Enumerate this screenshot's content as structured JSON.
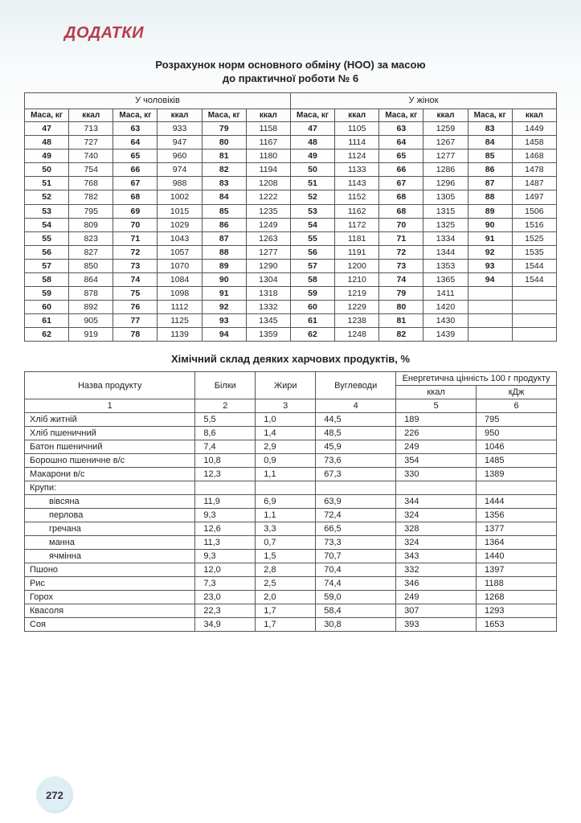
{
  "header": {
    "title": "ДОДАТКИ"
  },
  "noo": {
    "title": "Розрахунок норм основного обміну (НОО) за масою",
    "subtitle": "до практичної роботи № 6",
    "group_men": "У чоловіків",
    "group_women": "У жінок",
    "col_mass": "Маса, кг",
    "col_kcal": "ккал",
    "rows": [
      {
        "m": [
          [
            "47",
            713
          ],
          [
            "63",
            933
          ],
          [
            "79",
            1158
          ]
        ],
        "w": [
          [
            "47",
            1105
          ],
          [
            "63",
            1259
          ],
          [
            "83",
            1449
          ]
        ]
      },
      {
        "m": [
          [
            "48",
            727
          ],
          [
            "64",
            947
          ],
          [
            "80",
            1167
          ]
        ],
        "w": [
          [
            "48",
            1114
          ],
          [
            "64",
            1267
          ],
          [
            "84",
            1458
          ]
        ]
      },
      {
        "m": [
          [
            "49",
            740
          ],
          [
            "65",
            960
          ],
          [
            "81",
            1180
          ]
        ],
        "w": [
          [
            "49",
            1124
          ],
          [
            "65",
            1277
          ],
          [
            "85",
            1468
          ]
        ]
      },
      {
        "m": [
          [
            "50",
            754
          ],
          [
            "66",
            974
          ],
          [
            "82",
            1194
          ]
        ],
        "w": [
          [
            "50",
            1133
          ],
          [
            "66",
            1286
          ],
          [
            "86",
            1478
          ]
        ]
      },
      {
        "m": [
          [
            "51",
            768
          ],
          [
            "67",
            988
          ],
          [
            "83",
            1208
          ]
        ],
        "w": [
          [
            "51",
            1143
          ],
          [
            "67",
            1296
          ],
          [
            "87",
            1487
          ]
        ]
      },
      {
        "m": [
          [
            "52",
            782
          ],
          [
            "68",
            1002
          ],
          [
            "84",
            1222
          ]
        ],
        "w": [
          [
            "52",
            1152
          ],
          [
            "68",
            1305
          ],
          [
            "88",
            1497
          ]
        ]
      },
      {
        "m": [
          [
            "53",
            795
          ],
          [
            "69",
            1015
          ],
          [
            "85",
            1235
          ]
        ],
        "w": [
          [
            "53",
            1162
          ],
          [
            "68",
            1315
          ],
          [
            "89",
            1506
          ]
        ]
      },
      {
        "m": [
          [
            "54",
            809
          ],
          [
            "70",
            1029
          ],
          [
            "86",
            1249
          ]
        ],
        "w": [
          [
            "54",
            1172
          ],
          [
            "70",
            1325
          ],
          [
            "90",
            1516
          ]
        ]
      },
      {
        "m": [
          [
            "55",
            823
          ],
          [
            "71",
            1043
          ],
          [
            "87",
            1263
          ]
        ],
        "w": [
          [
            "55",
            1181
          ],
          [
            "71",
            1334
          ],
          [
            "91",
            1525
          ]
        ]
      },
      {
        "m": [
          [
            "56",
            827
          ],
          [
            "72",
            1057
          ],
          [
            "88",
            1277
          ]
        ],
        "w": [
          [
            "56",
            1191
          ],
          [
            "72",
            1344
          ],
          [
            "92",
            1535
          ]
        ]
      },
      {
        "m": [
          [
            "57",
            850
          ],
          [
            "73",
            1070
          ],
          [
            "89",
            1290
          ]
        ],
        "w": [
          [
            "57",
            1200
          ],
          [
            "73",
            1353
          ],
          [
            "93",
            1544
          ]
        ]
      },
      {
        "m": [
          [
            "58",
            864
          ],
          [
            "74",
            1084
          ],
          [
            "90",
            1304
          ]
        ],
        "w": [
          [
            "58",
            1210
          ],
          [
            "74",
            1365
          ],
          [
            "94",
            1544
          ]
        ]
      },
      {
        "m": [
          [
            "59",
            878
          ],
          [
            "75",
            1098
          ],
          [
            "91",
            1318
          ]
        ],
        "w": [
          [
            "59",
            1219
          ],
          [
            "79",
            1411
          ],
          [
            "",
            ""
          ]
        ]
      },
      {
        "m": [
          [
            "60",
            892
          ],
          [
            "76",
            1112
          ],
          [
            "92",
            1332
          ]
        ],
        "w": [
          [
            "60",
            1229
          ],
          [
            "80",
            1420
          ],
          [
            "",
            ""
          ]
        ]
      },
      {
        "m": [
          [
            "61",
            905
          ],
          [
            "77",
            1125
          ],
          [
            "93",
            1345
          ]
        ],
        "w": [
          [
            "61",
            1238
          ],
          [
            "81",
            1430
          ],
          [
            "",
            ""
          ]
        ]
      },
      {
        "m": [
          [
            "62",
            919
          ],
          [
            "78",
            1139
          ],
          [
            "94",
            1359
          ]
        ],
        "w": [
          [
            "62",
            1248
          ],
          [
            "82",
            1439
          ],
          [
            "",
            ""
          ]
        ]
      }
    ]
  },
  "foods": {
    "title": "Хімічний склад деяких харчових продуктів, %",
    "headers": {
      "name": "Назва продукту",
      "protein": "Білки",
      "fat": "Жири",
      "carbs": "Вуглеводи",
      "energy": "Енергетична цінність 100 г продукту",
      "kcal": "ккал",
      "kj": "кДж"
    },
    "colnums": [
      "1",
      "2",
      "3",
      "4",
      "5",
      "6"
    ],
    "rows": [
      {
        "n": "Хліб житній",
        "p": "5,5",
        "f": "1,0",
        "c": "44,5",
        "kc": "189",
        "kj": "795"
      },
      {
        "n": "Хліб пшеничний",
        "p": "8,6",
        "f": "1,4",
        "c": "48,5",
        "kc": "226",
        "kj": "950"
      },
      {
        "n": "Батон пшеничний",
        "p": "7,4",
        "f": "2,9",
        "c": "45,9",
        "kc": "249",
        "kj": "1046"
      },
      {
        "n": "Борошно пшеничне в/с",
        "p": "10,8",
        "f": "0,9",
        "c": "73,6",
        "kc": "354",
        "kj": "1485"
      },
      {
        "n": "Макарони в/с",
        "p": "12,3",
        "f": "1,1",
        "c": "67,3",
        "kc": "330",
        "kj": "1389"
      },
      {
        "n": "Крупи:",
        "p": "",
        "f": "",
        "c": "",
        "kc": "",
        "kj": ""
      },
      {
        "n": "вівсяна",
        "p": "11,9",
        "f": "6,9",
        "c": "63,9",
        "kc": "344",
        "kj": "1444",
        "indent": true
      },
      {
        "n": "перлова",
        "p": "9,3",
        "f": "1,1",
        "c": "72,4",
        "kc": "324",
        "kj": "1356",
        "indent": true
      },
      {
        "n": "гречана",
        "p": "12,6",
        "f": "3,3",
        "c": "66,5",
        "kc": "328",
        "kj": "1377",
        "indent": true
      },
      {
        "n": "манна",
        "p": "11,3",
        "f": "0,7",
        "c": "73,3",
        "kc": "324",
        "kj": "1364",
        "indent": true
      },
      {
        "n": "ячмінна",
        "p": "9,3",
        "f": "1,5",
        "c": "70,7",
        "kc": "343",
        "kj": "1440",
        "indent": true
      },
      {
        "n": "Пшоно",
        "p": "12,0",
        "f": "2,8",
        "c": "70,4",
        "kc": "332",
        "kj": "1397"
      },
      {
        "n": "Рис",
        "p": "7,3",
        "f": "2,5",
        "c": "74,4",
        "kc": "346",
        "kj": "1188"
      },
      {
        "n": "Горох",
        "p": "23,0",
        "f": "2,0",
        "c": "59,0",
        "kc": "249",
        "kj": "1268"
      },
      {
        "n": "Квасоля",
        "p": "22,3",
        "f": "1,7",
        "c": "58,4",
        "kc": "307",
        "kj": "1293"
      },
      {
        "n": "Соя",
        "p": "34,9",
        "f": "1,7",
        "c": "30,8",
        "kc": "393",
        "kj": "1653"
      }
    ]
  },
  "page_number": "272",
  "colors": {
    "header_text": "#b73c4a",
    "border": "#555555",
    "bg_top": "#e8f1f3",
    "bg": "#ffffff"
  },
  "typography": {
    "base_pt": 11,
    "title_pt": 13,
    "header_pt": 20
  }
}
